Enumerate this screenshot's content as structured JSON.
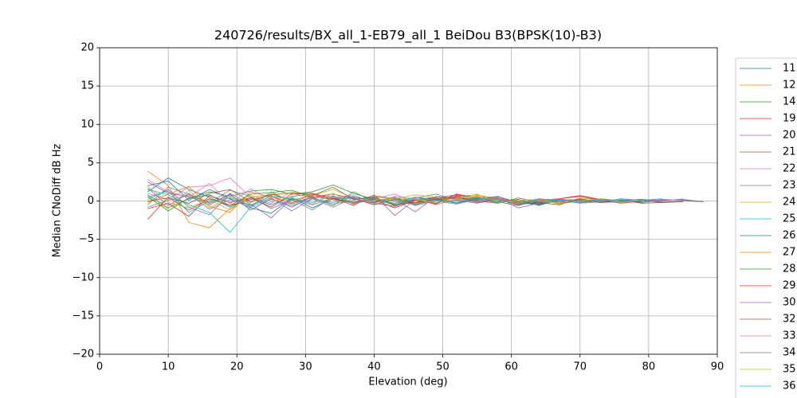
{
  "chart_data": {
    "type": "line",
    "title": "240726/results/BX_all_1-EB79_all_1 BeiDou B3(BPSK(10)-B3)",
    "x_label": "Elevation (deg)",
    "y_label": "Median CNoDiff dB Hz",
    "xlim": [
      0,
      90
    ],
    "ylim": [
      -20,
      20
    ],
    "xticks": [
      0,
      10,
      20,
      30,
      40,
      50,
      60,
      70,
      80,
      90
    ],
    "yticks": [
      {
        "value": -20,
        "label": "−20"
      },
      {
        "value": -15,
        "label": "−15"
      },
      {
        "value": -10,
        "label": "−10"
      },
      {
        "value": -5,
        "label": "−5"
      },
      0,
      5,
      10,
      15,
      20
    ],
    "grid": true,
    "x": [
      7,
      10,
      13,
      16,
      19,
      22,
      25,
      28,
      31,
      34,
      37,
      40,
      43,
      46,
      49,
      52,
      55,
      58,
      61,
      64,
      67,
      70,
      73,
      76,
      79,
      82,
      85,
      88
    ],
    "series": [
      {
        "name": "11.0",
        "color": "#1f77b4",
        "values": [
          1.2,
          3.0,
          1.5,
          0.5,
          -0.8,
          0.4,
          -0.5,
          0.6,
          0.9,
          0.2,
          -0.3,
          0.4,
          -0.6,
          0.3,
          0.1,
          0.5,
          0.2,
          -0.2,
          0.1,
          -0.3,
          0.2,
          0.1,
          -0.2,
          0.1,
          0.2,
          null,
          null,
          null
        ]
      },
      {
        "name": "12.0",
        "color": "#ff7f0e",
        "values": [
          3.9,
          2.0,
          -2.8,
          -3.5,
          -1.0,
          0.5,
          0.8,
          1.0,
          0.4,
          0.6,
          -0.2,
          0.3,
          0.1,
          -0.4,
          0.2,
          0.6,
          0.8,
          0.3,
          -0.2,
          0.1,
          0.3,
          -0.1,
          0.2,
          0.0,
          null,
          null,
          null,
          null
        ]
      },
      {
        "name": "14.0",
        "color": "#2ca02c",
        "values": [
          0.8,
          -0.9,
          0.3,
          1.2,
          0.6,
          1.3,
          1.5,
          0.9,
          1.2,
          2.1,
          1.0,
          0.2,
          -0.3,
          0.5,
          0.2,
          0.4,
          0.1,
          0.3,
          -0.4,
          -0.2,
          0.1,
          0.2,
          0.0,
          null,
          null,
          null,
          null,
          null
        ]
      },
      {
        "name": "19.0",
        "color": "#d62728",
        "values": [
          -2.4,
          0.5,
          -1.2,
          0.3,
          -0.6,
          0.2,
          0.7,
          -0.4,
          0.5,
          0.9,
          0.3,
          -0.5,
          0.2,
          0.1,
          -0.3,
          0.9,
          0.4,
          0.2,
          -0.5,
          -0.1,
          0.3,
          0.6,
          0.1,
          -0.2,
          null,
          null,
          null,
          null
        ]
      },
      {
        "name": "20.0",
        "color": "#9467bd",
        "values": [
          0.2,
          1.5,
          -0.8,
          -1.8,
          1.0,
          -0.4,
          -2.2,
          0.3,
          -0.5,
          0.4,
          -0.6,
          0.8,
          -1.9,
          0.2,
          0.5,
          0.3,
          -0.1,
          0.6,
          -0.3,
          0.2,
          -0.4,
          0.1,
          -0.2,
          0.1,
          -0.1,
          0.2,
          0.1,
          -0.1
        ]
      },
      {
        "name": "21.0",
        "color": "#8c564b",
        "values": [
          2.5,
          1.0,
          0.6,
          -0.5,
          0.9,
          -1.2,
          0.3,
          -0.8,
          0.6,
          0.2,
          0.4,
          -0.3,
          -0.7,
          0.2,
          0.4,
          0.8,
          0.3,
          -0.1,
          -0.6,
          0.1,
          -0.3,
          0.0,
          -0.2,
          -0.1,
          0.1,
          -0.2,
          null,
          null
        ]
      },
      {
        "name": "22.0",
        "color": "#e377c2",
        "values": [
          1.0,
          0.2,
          1.8,
          2.0,
          3.0,
          0.5,
          -0.3,
          1.2,
          0.8,
          0.5,
          -0.1,
          0.3,
          0.9,
          -0.2,
          0.1,
          0.4,
          0.2,
          0.1,
          -0.2,
          0.3,
          0.1,
          -0.1,
          0.2,
          -0.1,
          0.0,
          null,
          null,
          null
        ]
      },
      {
        "name": "23.0",
        "color": "#7f7f7f",
        "values": [
          -0.5,
          1.8,
          0.9,
          -0.2,
          1.4,
          0.6,
          -1.0,
          0.2,
          -1.2,
          0.6,
          -0.3,
          0.5,
          -0.6,
          0.4,
          0.9,
          0.1,
          -0.3,
          0.2,
          -0.5,
          0.0,
          0.2,
          -0.3,
          -0.1,
          0.1,
          -0.2,
          0.1,
          0.2,
          -0.1
        ]
      },
      {
        "name": "24.0",
        "color": "#bcbd22",
        "values": [
          0.4,
          -1.0,
          1.4,
          -0.9,
          0.5,
          -0.2,
          0.9,
          1.1,
          0.7,
          1.5,
          0.4,
          -0.4,
          0.3,
          0.8,
          0.5,
          0.2,
          0.7,
          0.4,
          -0.1,
          0.2,
          -0.3,
          0.4,
          0.1,
          -0.2,
          null,
          null,
          null,
          null
        ]
      },
      {
        "name": "25.0",
        "color": "#17becf",
        "values": [
          1.5,
          0.8,
          -0.5,
          -1.5,
          -4.1,
          -0.8,
          0.2,
          -0.6,
          0.3,
          -0.2,
          0.5,
          0.1,
          -0.4,
          0.3,
          -0.2,
          0.1,
          0.4,
          -0.3,
          0.2,
          -0.4,
          0.0,
          0.2,
          -0.1,
          0.3,
          0.1,
          null,
          null,
          null
        ]
      },
      {
        "name": "26.0",
        "color": "#1f77b4",
        "values": [
          2.0,
          2.6,
          0.1,
          1.5,
          0.3,
          -0.9,
          -1.6,
          0.4,
          -0.9,
          0.3,
          0.6,
          -0.2,
          0.5,
          -0.5,
          0.2,
          -0.3,
          0.3,
          0.6,
          -0.2,
          -0.5,
          0.1,
          -0.2,
          0.3,
          0.0,
          0.2,
          -0.1,
          null,
          null
        ]
      },
      {
        "name": "27.0",
        "color": "#ff7f0e",
        "values": [
          -0.2,
          0.9,
          1.9,
          -0.7,
          -1.5,
          1.2,
          0.5,
          -0.3,
          0.9,
          0.2,
          -0.5,
          0.6,
          0.2,
          -0.2,
          0.4,
          0.0,
          0.6,
          0.2,
          -0.3,
          0.1,
          -0.2,
          0.3,
          -0.1,
          0.1,
          null,
          null,
          null,
          null
        ]
      },
      {
        "name": "28.0",
        "color": "#2ca02c",
        "values": [
          0.6,
          -1.3,
          0.4,
          0.8,
          -0.6,
          0.9,
          1.1,
          1.4,
          0.5,
          -0.6,
          1.2,
          -0.1,
          0.4,
          -0.3,
          0.3,
          -0.2,
          0.5,
          -0.1,
          0.2,
          -0.6,
          0.2,
          -0.1,
          0.0,
          0.1,
          -0.2,
          null,
          null,
          null
        ]
      },
      {
        "name": "29.0",
        "color": "#d62728",
        "values": [
          -1.0,
          -0.3,
          -2.0,
          0.7,
          -0.2,
          0.4,
          -0.8,
          0.9,
          1.0,
          0.3,
          -0.2,
          0.2,
          -0.9,
          0.1,
          -0.4,
          0.7,
          -0.2,
          0.4,
          -0.1,
          -0.4,
          0.3,
          0.7,
          0.2,
          -0.3,
          0.0,
          null,
          null,
          null
        ]
      },
      {
        "name": "30.0",
        "color": "#9467bd",
        "values": [
          1.7,
          -0.6,
          1.0,
          -1.1,
          0.2,
          -0.6,
          0.4,
          -1.3,
          0.3,
          -0.8,
          0.4,
          -0.5,
          0.2,
          -1.4,
          0.6,
          0.3,
          -0.2,
          0.5,
          -0.9,
          -0.3,
          0.2,
          -0.1,
          0.1,
          -0.3,
          0.2,
          0.1,
          0.2,
          null
        ]
      },
      {
        "name": "32.0",
        "color": "#8c564b",
        "values": [
          0.0,
          0.4,
          -0.3,
          1.0,
          1.5,
          -0.1,
          0.9,
          0.1,
          0.7,
          1.8,
          0.2,
          0.5,
          -0.5,
          -0.2,
          0.3,
          0.5,
          0.0,
          -0.3,
          0.4,
          -0.2,
          -0.5,
          0.3,
          -0.2,
          0.1,
          -0.3,
          -0.2,
          -0.1,
          null
        ]
      },
      {
        "name": "33.0",
        "color": "#e377c2",
        "values": [
          2.8,
          1.2,
          0.5,
          2.3,
          -0.4,
          1.6,
          0.2,
          -0.4,
          0.6,
          0.4,
          0.8,
          -0.3,
          0.6,
          0.3,
          -0.5,
          0.2,
          -0.1,
          0.4,
          -0.2,
          0.1,
          0.3,
          -0.2,
          0.1,
          0.2,
          0.1,
          0.0,
          0.3,
          null
        ]
      },
      {
        "name": "34.0",
        "color": "#7f7f7f",
        "values": [
          -0.8,
          0.1,
          0.8,
          -0.3,
          0.8,
          -0.8,
          1.2,
          -0.2,
          0.4,
          -0.4,
          0.1,
          0.7,
          0.3,
          -0.6,
          0.0,
          -0.4,
          0.2,
          0.6,
          -0.3,
          0.3,
          -0.1,
          0.1,
          -0.2,
          -0.1,
          0.1,
          -0.1,
          0.0,
          -0.1
        ]
      },
      {
        "name": "35.0",
        "color": "#bcbd22",
        "values": [
          1.9,
          -0.2,
          -0.9,
          0.2,
          -1.2,
          0.8,
          -0.1,
          0.5,
          -0.4,
          1.0,
          -0.3,
          0.1,
          0.4,
          0.2,
          -0.2,
          0.3,
          0.9,
          -0.2,
          0.1,
          0.2,
          -0.4,
          0.0,
          0.3,
          -0.2,
          0.1,
          null,
          null,
          null
        ]
      },
      {
        "name": "36.0",
        "color": "#17becf",
        "values": [
          0.5,
          1.3,
          -1.5,
          0.0,
          0.4,
          -0.5,
          0.6,
          0.3,
          -0.2,
          0.7,
          -0.4,
          0.3,
          -0.1,
          0.5,
          0.1,
          -0.2,
          0.4,
          0.1,
          -0.4,
          0.2,
          0.1,
          -0.3,
          0.2,
          0.0,
          0.1,
          0.3,
          null,
          null
        ]
      }
    ]
  }
}
